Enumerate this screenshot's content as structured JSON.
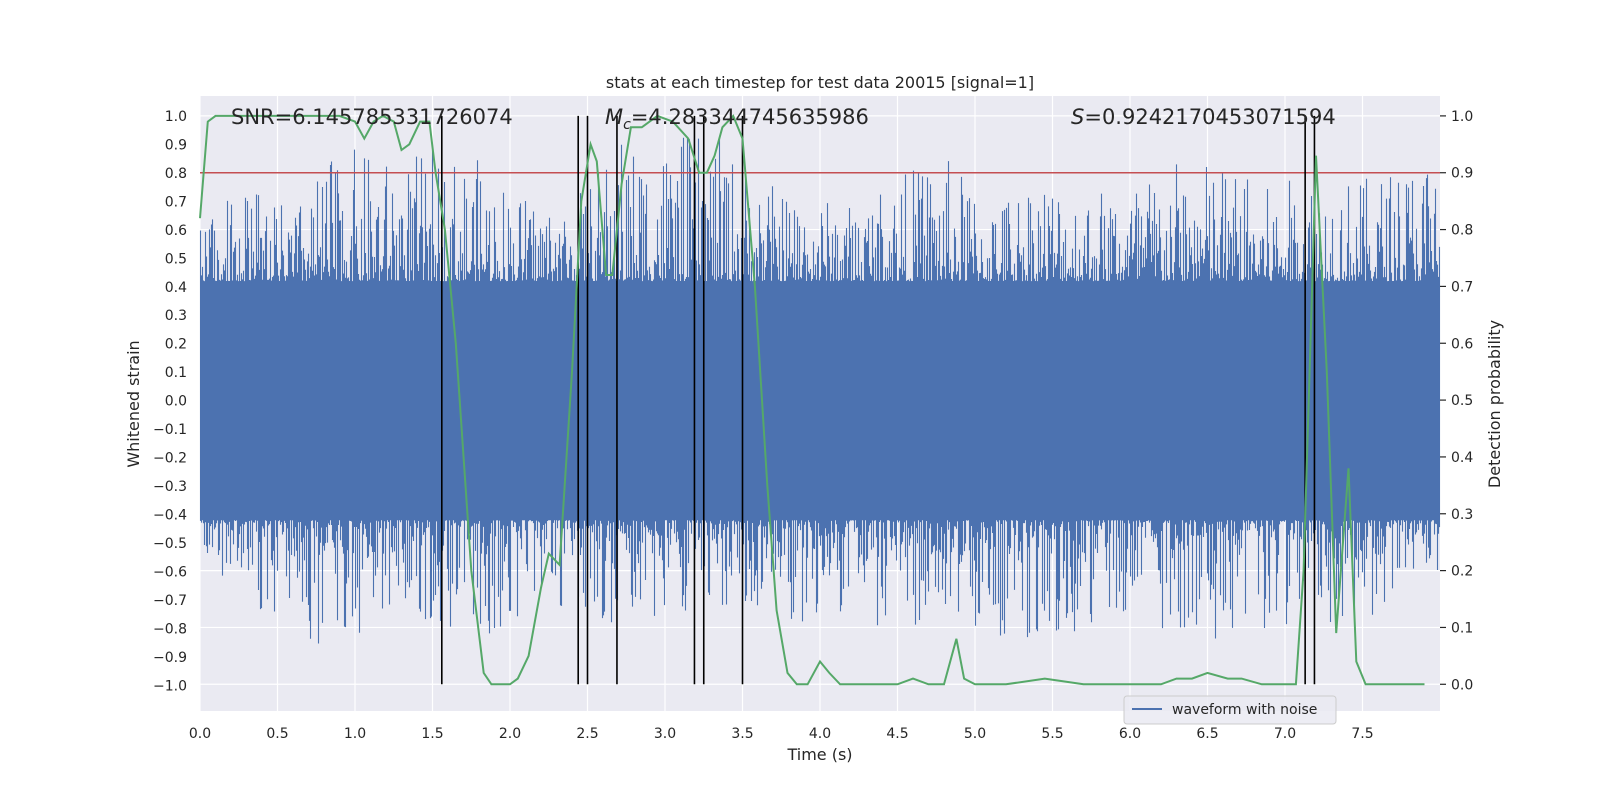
{
  "chart_data": {
    "type": "line",
    "title": "stats at each timestep for test data 20015 [signal=1]",
    "xlabel": "Time (s)",
    "ylabel": "Whitened strain",
    "y2label": "Detection probability",
    "xlim": [
      0,
      8
    ],
    "ylim": [
      -1.09,
      1.07
    ],
    "y2lim": [
      -0.047,
      1.035
    ],
    "xticks": [
      "0.0",
      "0.5",
      "1.0",
      "1.5",
      "2.0",
      "2.5",
      "3.0",
      "3.5",
      "4.0",
      "4.5",
      "5.0",
      "5.5",
      "6.0",
      "6.5",
      "7.0",
      "7.5"
    ],
    "yticks": [
      "1.0",
      "0.9",
      "0.8",
      "0.7",
      "0.6",
      "0.5",
      "0.4",
      "0.3",
      "0.2",
      "0.1",
      "0.0",
      "-0.1",
      "-0.2",
      "-0.3",
      "-0.4",
      "-0.5",
      "-0.6",
      "-0.7",
      "-0.8",
      "-0.9",
      "-1.0"
    ],
    "y2ticks": [
      "1.0",
      "0.9",
      "0.8",
      "0.7",
      "0.6",
      "0.5",
      "0.4",
      "0.3",
      "0.2",
      "0.1",
      "0.0"
    ],
    "grid": true,
    "legend": {
      "placement": "lower-right",
      "entries": [
        "waveform with noise"
      ]
    },
    "annotations": {
      "snr": "SNR=6.145785331726074",
      "mc_symbol": "M",
      "mc_sub": "c",
      "mc_value": "=4.283344745635986",
      "s_symbol": "S",
      "s_value": "=0.9242170453071594"
    },
    "threshold": 0.9,
    "vlines": [
      1.56,
      2.44,
      2.5,
      2.69,
      3.19,
      3.25,
      3.5,
      7.13,
      7.19
    ],
    "waveform_envelope": {
      "x": [
        0.0,
        0.3,
        0.6,
        0.9,
        1.2,
        1.5,
        1.8,
        2.1,
        2.4,
        2.7,
        3.0,
        3.3,
        3.6,
        3.9,
        4.2,
        4.5,
        4.8,
        5.1,
        5.4,
        5.7,
        6.0,
        6.3,
        6.6,
        6.9,
        7.2,
        7.5,
        8.0
      ],
      "upper": [
        0.6,
        0.78,
        0.67,
        0.9,
        0.85,
        0.88,
        0.85,
        0.72,
        0.7,
        0.93,
        0.92,
        0.95,
        0.78,
        0.72,
        0.7,
        0.8,
        0.87,
        0.7,
        0.82,
        0.75,
        0.78,
        0.85,
        0.85,
        0.75,
        0.82,
        0.78,
        0.9
      ],
      "lower": [
        -0.55,
        -0.7,
        -0.82,
        -0.92,
        -0.72,
        -0.78,
        -0.87,
        -0.75,
        -0.72,
        -0.8,
        -0.78,
        -0.75,
        -0.72,
        -0.8,
        -0.76,
        -0.82,
        -0.79,
        -0.84,
        -0.85,
        -0.8,
        -0.8,
        -0.8,
        -0.85,
        -0.82,
        -0.78,
        -0.8,
        -0.6
      ]
    },
    "series": [
      {
        "name": "waveform with noise",
        "color": "#4c72b0"
      },
      {
        "color": "#55a868",
        "x": [
          0.0,
          0.05,
          0.1,
          0.2,
          0.3,
          0.5,
          0.7,
          0.9,
          1.0,
          1.06,
          1.12,
          1.18,
          1.25,
          1.3,
          1.35,
          1.42,
          1.48,
          1.52,
          1.58,
          1.65,
          1.75,
          1.83,
          1.88,
          1.95,
          2.0,
          2.05,
          2.12,
          2.2,
          2.25,
          2.32,
          2.4,
          2.46,
          2.52,
          2.56,
          2.62,
          2.66,
          2.72,
          2.78,
          2.85,
          2.95,
          3.05,
          3.15,
          3.22,
          3.27,
          3.32,
          3.37,
          3.44,
          3.5,
          3.58,
          3.66,
          3.72,
          3.79,
          3.85,
          3.92,
          4.0,
          4.06,
          4.13,
          4.3,
          4.5,
          4.6,
          4.7,
          4.8,
          4.88,
          4.93,
          5.0,
          5.2,
          5.45,
          5.7,
          6.0,
          6.2,
          6.3,
          6.4,
          6.5,
          6.63,
          6.72,
          6.85,
          7.0,
          7.07,
          7.12,
          7.17,
          7.2,
          7.27,
          7.33,
          7.41,
          7.46,
          7.52,
          7.6,
          7.7,
          7.9
        ],
        "y": [
          0.82,
          0.99,
          1.0,
          1.0,
          1.0,
          1.0,
          1.0,
          1.0,
          0.99,
          0.96,
          0.99,
          1.0,
          0.99,
          0.94,
          0.95,
          0.99,
          0.99,
          0.9,
          0.8,
          0.6,
          0.2,
          0.02,
          0.0,
          0.0,
          0.0,
          0.01,
          0.05,
          0.17,
          0.23,
          0.21,
          0.55,
          0.85,
          0.95,
          0.92,
          0.72,
          0.72,
          0.88,
          0.98,
          0.98,
          1.0,
          0.99,
          0.96,
          0.9,
          0.9,
          0.93,
          0.98,
          1.0,
          0.96,
          0.7,
          0.35,
          0.13,
          0.02,
          0.0,
          0.0,
          0.04,
          0.02,
          0.0,
          0.0,
          0.0,
          0.01,
          0.0,
          0.0,
          0.08,
          0.01,
          0.0,
          0.0,
          0.01,
          0.0,
          0.0,
          0.0,
          0.01,
          0.01,
          0.02,
          0.01,
          0.01,
          0.0,
          0.0,
          0.0,
          0.2,
          0.65,
          0.93,
          0.55,
          0.09,
          0.38,
          0.04,
          0.0,
          0.0,
          0.0,
          0.0
        ]
      }
    ]
  }
}
